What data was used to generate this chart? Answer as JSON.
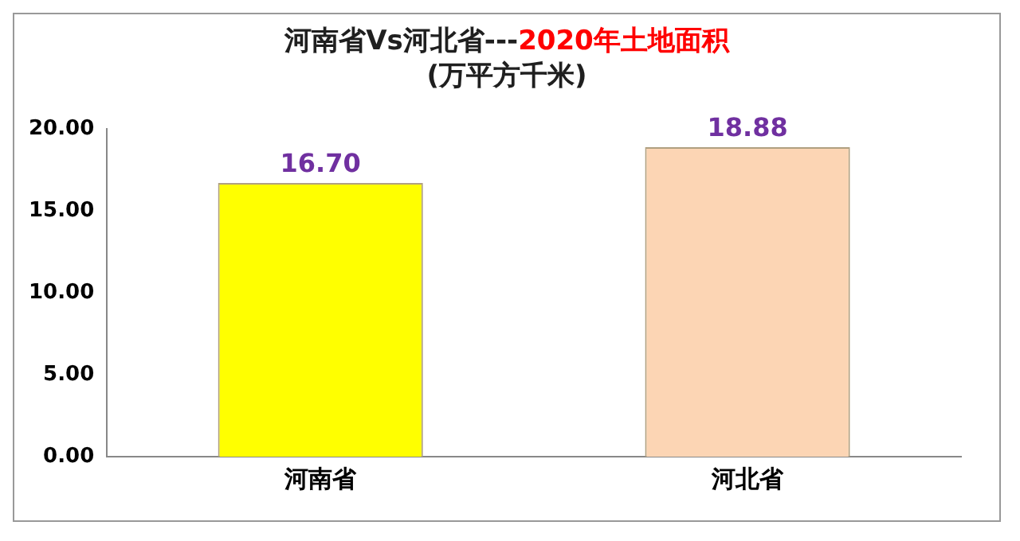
{
  "chart_data": {
    "type": "bar",
    "title": "河南省Vs河北省---2020年土地面积",
    "subtitle": "(万平方千米)",
    "categories": [
      "河南省",
      "河北省"
    ],
    "values": [
      16.7,
      18.88
    ],
    "colors": [
      "#ffff00",
      "#fcd5b4"
    ],
    "value_labels": [
      "16.70",
      "18.88"
    ],
    "ylim": [
      0,
      20
    ],
    "yticks": [
      {
        "value": 0,
        "label": "0.00"
      },
      {
        "value": 5,
        "label": "5.00"
      },
      {
        "value": 10,
        "label": "10.00"
      },
      {
        "value": 15,
        "label": "15.00"
      },
      {
        "value": 20,
        "label": "20.00"
      }
    ],
    "grid": false,
    "legend": false
  }
}
